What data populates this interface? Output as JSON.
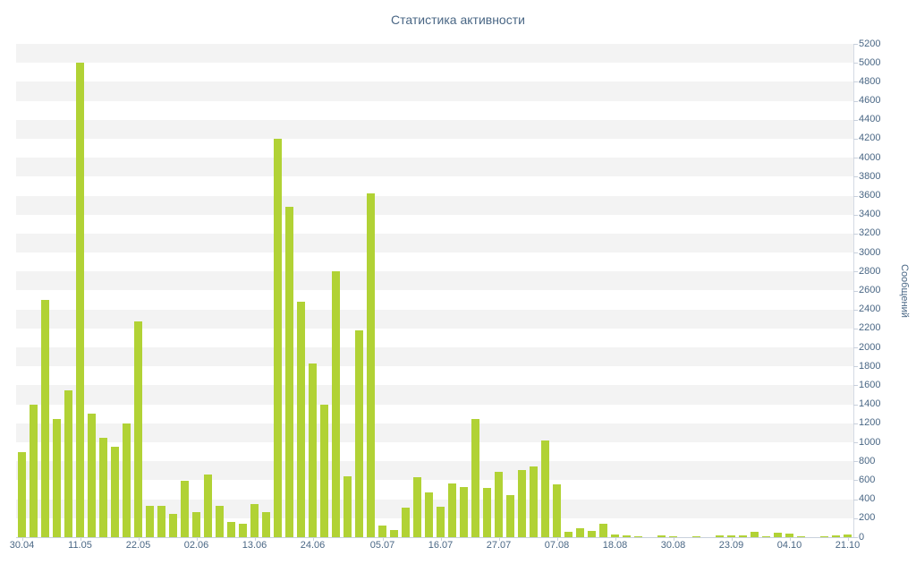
{
  "chart_data": {
    "type": "bar",
    "title": "Статистика активности",
    "ylabel": "Сообщений",
    "xlabel": "",
    "ylim": [
      0,
      5200
    ],
    "y_tick_step": 200,
    "bar_color": "#b1d235",
    "label_color": "#4a6785",
    "band_colors": [
      "#f3f3f3",
      "#ffffff"
    ],
    "legend": "none",
    "grid": "alternating-horizontal-bands",
    "values": [
      900,
      1400,
      2500,
      1250,
      1550,
      5000,
      1300,
      1050,
      950,
      1200,
      2270,
      330,
      330,
      250,
      590,
      260,
      660,
      330,
      160,
      140,
      350,
      260,
      4200,
      3480,
      2480,
      1830,
      1400,
      2800,
      640,
      2180,
      3620,
      120,
      80,
      310,
      630,
      470,
      320,
      570,
      530,
      1250,
      520,
      690,
      440,
      710,
      750,
      1020,
      560,
      60,
      90,
      70,
      140,
      30,
      20,
      10,
      0,
      15,
      10,
      0,
      10,
      0,
      15,
      20,
      15,
      60,
      10,
      50,
      40,
      10,
      0,
      10,
      15,
      25
    ],
    "x_ticks": [
      {
        "label": "30.04",
        "bar_index": 0
      },
      {
        "label": "11.05",
        "bar_index": 5
      },
      {
        "label": "22.05",
        "bar_index": 10
      },
      {
        "label": "02.06",
        "bar_index": 15
      },
      {
        "label": "13.06",
        "bar_index": 20
      },
      {
        "label": "24.06",
        "bar_index": 25
      },
      {
        "label": "05.07",
        "bar_index": 31
      },
      {
        "label": "16.07",
        "bar_index": 36
      },
      {
        "label": "27.07",
        "bar_index": 41
      },
      {
        "label": "07.08",
        "bar_index": 46
      },
      {
        "label": "18.08",
        "bar_index": 51
      },
      {
        "label": "30.08",
        "bar_index": 56
      },
      {
        "label": "23.09",
        "bar_index": 61
      },
      {
        "label": "04.10",
        "bar_index": 66
      },
      {
        "label": "21.10",
        "bar_index": 71
      }
    ]
  }
}
